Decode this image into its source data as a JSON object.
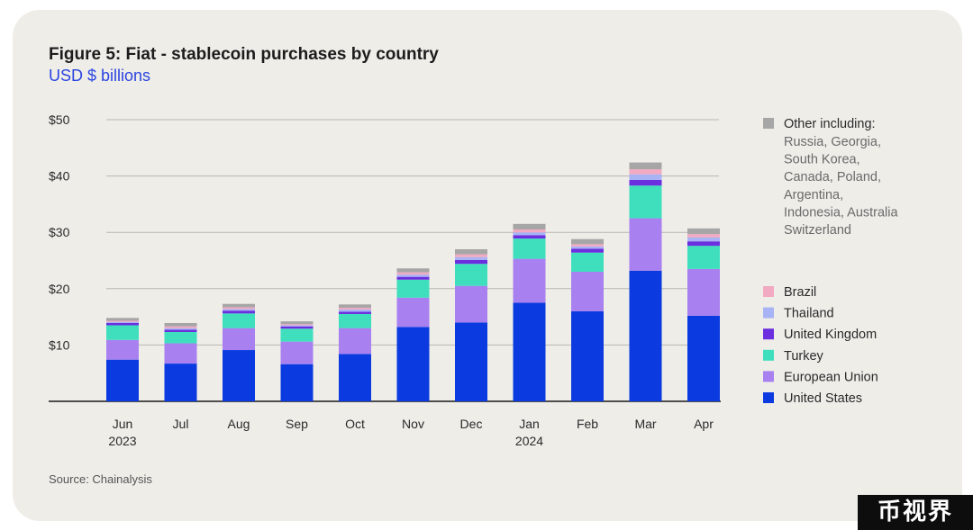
{
  "chart_data": {
    "type": "bar",
    "stacked": true,
    "title": "Figure 5: Fiat - stablecoin purchases by country",
    "subtitle": "USD $ billions",
    "source": "Source: Chainalysis",
    "ylim": [
      0,
      50
    ],
    "yticks": [
      {
        "value": 10,
        "label": "$10"
      },
      {
        "value": 20,
        "label": "$20"
      },
      {
        "value": 30,
        "label": "$30"
      },
      {
        "value": 40,
        "label": "$40"
      },
      {
        "value": 50,
        "label": "$50"
      }
    ],
    "grid": true,
    "legend_position": "right",
    "categories": [
      "Jun",
      "Jul",
      "Aug",
      "Sep",
      "Oct",
      "Nov",
      "Dec",
      "Jan",
      "Feb",
      "Mar",
      "Apr"
    ],
    "category_sublabels": [
      "2023",
      "",
      "",
      "",
      "",
      "",
      "",
      "2024",
      "",
      "",
      ""
    ],
    "series": [
      {
        "name": "United States",
        "color": "#0b3be0",
        "values": [
          7.4,
          6.7,
          9.1,
          6.6,
          8.4,
          13.2,
          14.0,
          17.5,
          16.0,
          23.2,
          15.2
        ]
      },
      {
        "name": "European Union",
        "color": "#a880f0",
        "values": [
          3.5,
          3.6,
          3.9,
          4.0,
          4.6,
          5.2,
          6.5,
          7.8,
          7.0,
          9.3,
          8.3
        ]
      },
      {
        "name": "Turkey",
        "color": "#3fdfbe",
        "values": [
          2.6,
          2.0,
          2.6,
          2.3,
          2.5,
          3.2,
          3.9,
          3.6,
          3.4,
          5.8,
          4.1
        ]
      },
      {
        "name": "United Kingdom",
        "color": "#6b2fdf",
        "values": [
          0.4,
          0.4,
          0.5,
          0.4,
          0.4,
          0.5,
          0.7,
          0.6,
          0.7,
          1.0,
          0.8
        ]
      },
      {
        "name": "Thailand",
        "color": "#a7b3f5",
        "values": [
          0.2,
          0.3,
          0.3,
          0.2,
          0.4,
          0.4,
          0.5,
          0.5,
          0.4,
          1.0,
          0.7
        ]
      },
      {
        "name": "Brazil",
        "color": "#f2a9c2",
        "values": [
          0.2,
          0.3,
          0.3,
          0.2,
          0.3,
          0.4,
          0.5,
          0.5,
          0.4,
          0.9,
          0.6
        ]
      },
      {
        "name": "Other including:",
        "color": "#a6a6a6",
        "values": [
          0.5,
          0.6,
          0.6,
          0.5,
          0.6,
          0.7,
          0.9,
          1.0,
          0.9,
          1.2,
          1.0
        ]
      }
    ],
    "legend_other_detail": [
      "Russia, Georgia,",
      "South Korea,",
      "Canada, Poland,",
      "Argentina,",
      "Indonesia, Australia",
      "Switzerland"
    ]
  },
  "watermark": "币视界"
}
